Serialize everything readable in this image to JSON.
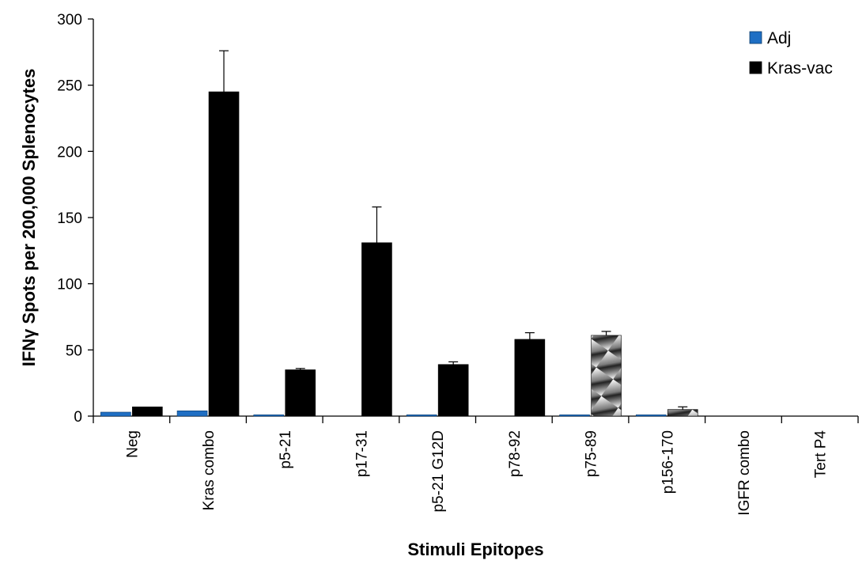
{
  "chart_data": {
    "type": "bar",
    "title": "",
    "xlabel": "Stimuli Epitopes",
    "ylabel": "IFNγ Spots per 200,000 Splenocytes",
    "ylim": [
      0,
      300
    ],
    "yticks": [
      0,
      50,
      100,
      150,
      200,
      250,
      300
    ],
    "categories": [
      "Neg",
      "Kras combo",
      "p5-21",
      "p17-31",
      "p5-21 G12D",
      "p78-92",
      "p75-89",
      "p156-170",
      "IGFR combo",
      "Tert P4"
    ],
    "series": [
      {
        "name": "Adj",
        "color": "#1f6fc4",
        "values": [
          3,
          4,
          1,
          0,
          1,
          0,
          1,
          1,
          0,
          0
        ],
        "errors": [
          0,
          0,
          0,
          0,
          0,
          0,
          0,
          0,
          0,
          0
        ]
      },
      {
        "name": "Kras-vac",
        "color": "#000000",
        "values": [
          7,
          245,
          35,
          131,
          39,
          58,
          61,
          5,
          0,
          0
        ],
        "errors": [
          0,
          31,
          1,
          27,
          2,
          5,
          3,
          2,
          0,
          0
        ],
        "patterned": [
          false,
          false,
          false,
          false,
          false,
          false,
          true,
          true,
          false,
          false
        ]
      }
    ],
    "grid": false,
    "legend_position": "top-right"
  }
}
